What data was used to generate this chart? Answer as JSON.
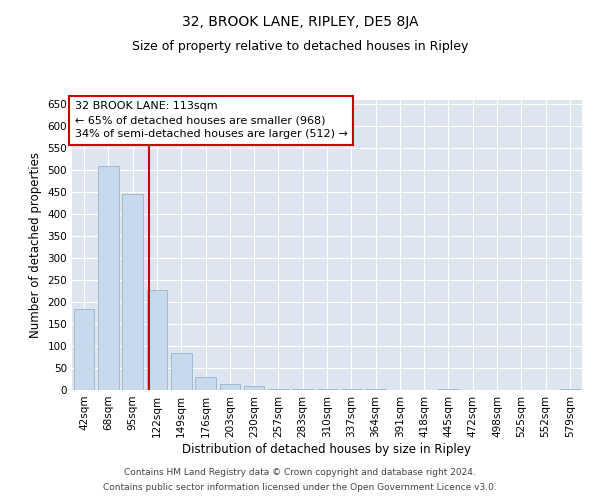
{
  "title": "32, BROOK LANE, RIPLEY, DE5 8JA",
  "subtitle": "Size of property relative to detached houses in Ripley",
  "xlabel": "Distribution of detached houses by size in Ripley",
  "ylabel": "Number of detached properties",
  "categories": [
    "42sqm",
    "68sqm",
    "95sqm",
    "122sqm",
    "149sqm",
    "176sqm",
    "203sqm",
    "230sqm",
    "257sqm",
    "283sqm",
    "310sqm",
    "337sqm",
    "364sqm",
    "391sqm",
    "418sqm",
    "445sqm",
    "472sqm",
    "498sqm",
    "525sqm",
    "552sqm",
    "579sqm"
  ],
  "values": [
    185,
    510,
    445,
    228,
    85,
    30,
    13,
    8,
    3,
    3,
    3,
    3,
    3,
    0,
    0,
    3,
    0,
    0,
    0,
    0,
    3
  ],
  "bar_color": "#c9d9ec",
  "bar_edgecolor": "#9ab4cc",
  "vline_color": "#cc0000",
  "vline_pos": 2.667,
  "ylim": [
    0,
    660
  ],
  "yticks": [
    0,
    50,
    100,
    150,
    200,
    250,
    300,
    350,
    400,
    450,
    500,
    550,
    600,
    650
  ],
  "annotation_title": "32 BROOK LANE: 113sqm",
  "annotation_line1": "← 65% of detached houses are smaller (968)",
  "annotation_line2": "34% of semi-detached houses are larger (512) →",
  "annotation_box_color": "#cc0000",
  "bg_color": "#dde6f0",
  "footer1": "Contains HM Land Registry data © Crown copyright and database right 2024.",
  "footer2": "Contains public sector information licensed under the Open Government Licence v3.0.",
  "title_fontsize": 10,
  "subtitle_fontsize": 9,
  "xlabel_fontsize": 8.5,
  "ylabel_fontsize": 8.5,
  "tick_fontsize": 7.5,
  "annotation_fontsize": 8,
  "footer_fontsize": 6.5
}
